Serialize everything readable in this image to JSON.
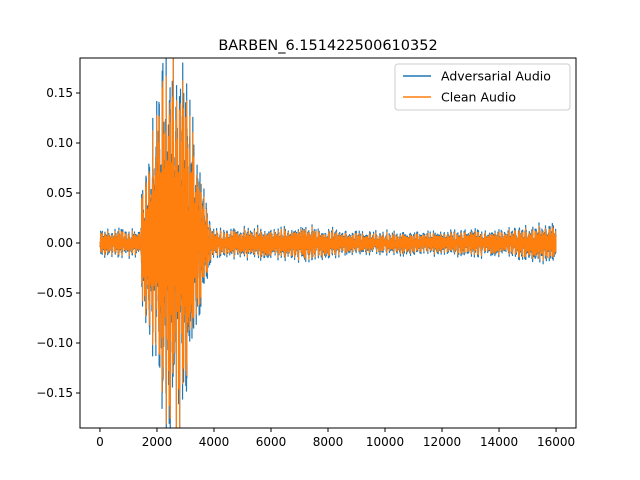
{
  "chart_data": {
    "type": "line",
    "title": "BARBEN_6.151422500610352",
    "xlabel": "",
    "ylabel": "",
    "xlim": [
      -700,
      16700
    ],
    "ylim": [
      -0.185,
      0.185
    ],
    "x_ticks": [
      0,
      2000,
      4000,
      6000,
      8000,
      10000,
      12000,
      14000,
      16000
    ],
    "y_ticks": [
      -0.15,
      -0.1,
      -0.05,
      0.0,
      0.05,
      0.1,
      0.15
    ],
    "x_tick_labels": [
      "0",
      "2000",
      "4000",
      "6000",
      "8000",
      "10000",
      "12000",
      "14000",
      "16000"
    ],
    "y_tick_labels": [
      "−0.15",
      "−0.10",
      "−0.05",
      "0.00",
      "0.05",
      "0.10",
      "0.15"
    ],
    "grid": false,
    "legend_position": "top-right",
    "num_samples": 16000,
    "series": [
      {
        "name": "Adversarial Audio",
        "color": "#1f77b4",
        "envelope": [
          {
            "x": 0,
            "amp": 0.012
          },
          {
            "x": 1400,
            "amp": 0.012
          },
          {
            "x": 1500,
            "amp": 0.06
          },
          {
            "x": 1800,
            "amp": 0.1
          },
          {
            "x": 2100,
            "amp": 0.15
          },
          {
            "x": 2500,
            "amp": 0.172
          },
          {
            "x": 2800,
            "amp": 0.16
          },
          {
            "x": 3100,
            "amp": 0.135
          },
          {
            "x": 3500,
            "amp": 0.07
          },
          {
            "x": 3800,
            "amp": 0.03
          },
          {
            "x": 4000,
            "amp": 0.012
          },
          {
            "x": 6500,
            "amp": 0.014
          },
          {
            "x": 7000,
            "amp": 0.016
          },
          {
            "x": 9000,
            "amp": 0.01
          },
          {
            "x": 14000,
            "amp": 0.012
          },
          {
            "x": 16000,
            "amp": 0.018
          }
        ]
      },
      {
        "name": "Clean Audio",
        "color": "#ff7f0e",
        "envelope": [
          {
            "x": 0,
            "amp": 0.01
          },
          {
            "x": 1400,
            "amp": 0.01
          },
          {
            "x": 1500,
            "amp": 0.055
          },
          {
            "x": 1800,
            "amp": 0.09
          },
          {
            "x": 2100,
            "amp": 0.135
          },
          {
            "x": 2500,
            "amp": 0.155
          },
          {
            "x": 2800,
            "amp": 0.145
          },
          {
            "x": 3100,
            "amp": 0.12
          },
          {
            "x": 3500,
            "amp": 0.06
          },
          {
            "x": 3800,
            "amp": 0.025
          },
          {
            "x": 4000,
            "amp": 0.01
          },
          {
            "x": 6500,
            "amp": 0.012
          },
          {
            "x": 7000,
            "amp": 0.014
          },
          {
            "x": 9000,
            "amp": 0.008
          },
          {
            "x": 14000,
            "amp": 0.01
          },
          {
            "x": 16000,
            "amp": 0.015
          }
        ]
      }
    ]
  }
}
